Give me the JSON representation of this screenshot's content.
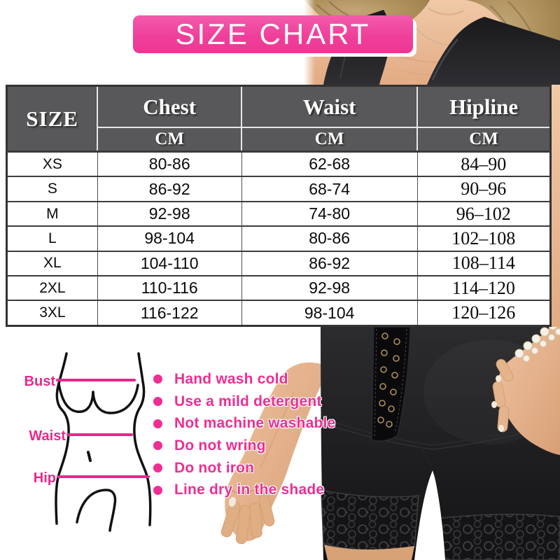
{
  "banner": {
    "title": "SIZE CHART"
  },
  "size_table": {
    "size_header": "SIZE",
    "columns": [
      {
        "label": "Chest",
        "unit": "CM"
      },
      {
        "label": "Waist",
        "unit": "CM"
      },
      {
        "label": "Hipline",
        "unit": "CM"
      }
    ],
    "rows": [
      {
        "size": "XS",
        "chest": "80-86",
        "waist": "62-68",
        "hipline": "84–90"
      },
      {
        "size": "S",
        "chest": "86-92",
        "waist": "68-74",
        "hipline": "90–96"
      },
      {
        "size": "M",
        "chest": "92-98",
        "waist": "74-80",
        "hipline": "96–102"
      },
      {
        "size": "L",
        "chest": "98-104",
        "waist": "80-86",
        "hipline": "102–108"
      },
      {
        "size": "XL",
        "chest": "104-110",
        "waist": "86-92",
        "hipline": "108–114"
      },
      {
        "size": "2XL",
        "chest": "110-116",
        "waist": "92-98",
        "hipline": "114–120"
      },
      {
        "size": "3XL",
        "chest": "116-122",
        "waist": "98-104",
        "hipline": "120–126"
      }
    ]
  },
  "measurement_diagram": {
    "bust_label": "Bust",
    "waist_label": "Waist",
    "hip_label": "Hip"
  },
  "care_instructions": [
    "Hand wash cold",
    "Use a mild detergent",
    "Not machine washable",
    "Do not wring",
    "Do not iron",
    "Line dry in the shade"
  ],
  "colors": {
    "banner_pink": "#ef3f9a",
    "accent_pink": "#ee2e94",
    "header_gray": "#58585a"
  },
  "chart_data": {
    "type": "table",
    "title": "SIZE CHART",
    "columns": [
      "SIZE",
      "Chest CM",
      "Waist CM",
      "Hipline CM"
    ],
    "rows": [
      [
        "XS",
        "80-86",
        "62-68",
        "84-90"
      ],
      [
        "S",
        "86-92",
        "68-74",
        "90-96"
      ],
      [
        "M",
        "92-98",
        "74-80",
        "96-102"
      ],
      [
        "L",
        "98-104",
        "80-86",
        "102-108"
      ],
      [
        "XL",
        "104-110",
        "86-92",
        "108-114"
      ],
      [
        "2XL",
        "110-116",
        "92-98",
        "114-120"
      ],
      [
        "3XL",
        "116-122",
        "98-104",
        "120-126"
      ]
    ]
  }
}
